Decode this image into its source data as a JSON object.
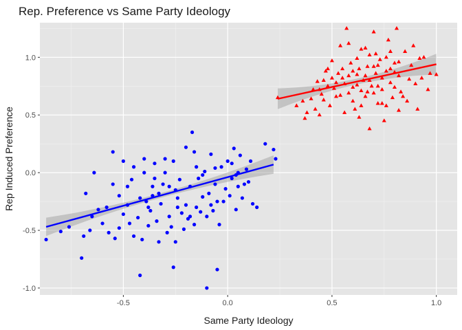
{
  "chart_data": {
    "type": "scatter",
    "title": "Rep. Preference vs Same Party Ideology",
    "xlabel": "Same Party Ideology",
    "ylabel": "Rep Induced Preference",
    "xlim": [
      -0.9,
      1.1
    ],
    "ylim": [
      -1.06,
      1.3
    ],
    "x_ticks": [
      -0.5,
      0.0,
      0.5,
      1.0
    ],
    "x_tick_labels": [
      "-0.5",
      "0.0",
      "0.5",
      "1.0"
    ],
    "y_ticks": [
      -1.0,
      -0.5,
      0.0,
      0.5,
      1.0
    ],
    "y_tick_labels": [
      "-1.0",
      "-0.5",
      "0.0",
      "0.5",
      "1.0"
    ],
    "grid": true,
    "background": "#e5e5e5",
    "series": [
      {
        "marker": "circle",
        "color": "#0000ff",
        "trend": {
          "x": [
            -0.87,
            0.22
          ],
          "y": [
            -0.47,
            0.07
          ],
          "ci_halfwidth_ends": 0.08,
          "ci_halfwidth_mid": 0.02
        },
        "points": [
          [
            -0.87,
            -0.58
          ],
          [
            -0.8,
            -0.51
          ],
          [
            -0.76,
            -0.47
          ],
          [
            -0.7,
            -0.74
          ],
          [
            -0.69,
            -0.55
          ],
          [
            -0.68,
            -0.18
          ],
          [
            -0.66,
            -0.5
          ],
          [
            -0.65,
            -0.38
          ],
          [
            -0.64,
            0.0
          ],
          [
            -0.62,
            -0.32
          ],
          [
            -0.6,
            -0.44
          ],
          [
            -0.58,
            -0.3
          ],
          [
            -0.57,
            -0.52
          ],
          [
            -0.55,
            0.18
          ],
          [
            -0.54,
            -0.57
          ],
          [
            -0.52,
            -0.48
          ],
          [
            -0.5,
            -0.36
          ],
          [
            -0.48,
            -0.28
          ],
          [
            -0.47,
            -0.44
          ],
          [
            -0.45,
            -0.55
          ],
          [
            -0.43,
            -0.39
          ],
          [
            -0.42,
            -0.89
          ],
          [
            -0.41,
            -0.58
          ],
          [
            -0.4,
            0.12
          ],
          [
            -0.39,
            -0.25
          ],
          [
            -0.38,
            -0.46
          ],
          [
            -0.37,
            -0.33
          ],
          [
            -0.36,
            -0.2
          ],
          [
            -0.35,
            0.08
          ],
          [
            -0.34,
            -0.42
          ],
          [
            -0.33,
            -0.6
          ],
          [
            -0.32,
            -0.27
          ],
          [
            -0.31,
            -0.1
          ],
          [
            -0.3,
            0.0
          ],
          [
            -0.29,
            -0.52
          ],
          [
            -0.28,
            -0.38
          ],
          [
            -0.27,
            -0.47
          ],
          [
            -0.26,
            -0.82
          ],
          [
            -0.25,
            -0.6
          ],
          [
            -0.24,
            -0.22
          ],
          [
            -0.23,
            -0.06
          ],
          [
            -0.22,
            -0.35
          ],
          [
            -0.21,
            -0.49
          ],
          [
            -0.2,
            -0.28
          ],
          [
            -0.19,
            -0.4
          ],
          [
            -0.18,
            -0.12
          ],
          [
            -0.17,
            0.35
          ],
          [
            -0.16,
            -0.45
          ],
          [
            -0.15,
            -0.3
          ],
          [
            -0.14,
            -0.05
          ],
          [
            -0.13,
            -0.34
          ],
          [
            -0.12,
            -0.21
          ],
          [
            -0.11,
            0.01
          ],
          [
            -0.1,
            -1.0
          ],
          [
            -0.09,
            -0.18
          ],
          [
            -0.08,
            0.16
          ],
          [
            -0.07,
            -0.33
          ],
          [
            -0.06,
            -0.1
          ],
          [
            -0.05,
            -0.84
          ],
          [
            -0.04,
            -0.45
          ],
          [
            -0.03,
            0.05
          ],
          [
            -0.02,
            -0.25
          ],
          [
            -0.01,
            -0.14
          ],
          [
            0.0,
            0.1
          ],
          [
            0.01,
            -0.2
          ],
          [
            0.02,
            -0.05
          ],
          [
            0.03,
            0.21
          ],
          [
            0.04,
            -0.32
          ],
          [
            0.05,
            0.0
          ],
          [
            0.06,
            0.15
          ],
          [
            0.07,
            -0.22
          ],
          [
            0.08,
            -0.1
          ],
          [
            0.09,
            0.03
          ],
          [
            0.1,
            -0.08
          ],
          [
            0.11,
            0.1
          ],
          [
            0.12,
            -0.27
          ],
          [
            0.14,
            -0.3
          ],
          [
            0.18,
            0.25
          ],
          [
            0.22,
            0.2
          ],
          [
            0.23,
            0.12
          ],
          [
            -0.45,
            0.05
          ],
          [
            -0.35,
            -0.05
          ],
          [
            -0.25,
            -0.15
          ],
          [
            -0.15,
            0.05
          ],
          [
            -0.05,
            -0.25
          ],
          [
            0.05,
            -0.12
          ],
          [
            -0.55,
            -0.1
          ],
          [
            -0.5,
            0.1
          ],
          [
            -0.4,
            0.0
          ],
          [
            -0.3,
            0.12
          ],
          [
            -0.2,
            0.22
          ],
          [
            -0.1,
            -0.38
          ],
          [
            -0.42,
            -0.22
          ],
          [
            -0.38,
            -0.3
          ],
          [
            -0.33,
            -0.18
          ],
          [
            -0.28,
            -0.12
          ],
          [
            -0.24,
            -0.3
          ],
          [
            -0.18,
            -0.38
          ],
          [
            -0.12,
            -0.02
          ],
          [
            -0.08,
            -0.28
          ],
          [
            0.02,
            0.08
          ],
          [
            -0.48,
            -0.12
          ],
          [
            -0.52,
            -0.2
          ],
          [
            -0.46,
            -0.06
          ],
          [
            -0.36,
            -0.12
          ],
          [
            -0.26,
            0.1
          ],
          [
            -0.16,
            0.18
          ],
          [
            -0.06,
            0.04
          ],
          [
            0.04,
            -0.02
          ]
        ]
      },
      {
        "marker": "triangle",
        "color": "#ff0000",
        "trend": {
          "x": [
            0.24,
            1.0
          ],
          "y": [
            0.64,
            0.94
          ],
          "ci_halfwidth_ends": 0.09,
          "ci_halfwidth_mid": 0.025
        },
        "points": [
          [
            0.24,
            0.65
          ],
          [
            0.33,
            0.58
          ],
          [
            0.36,
            0.62
          ],
          [
            0.37,
            0.47
          ],
          [
            0.38,
            0.52
          ],
          [
            0.4,
            0.64
          ],
          [
            0.41,
            0.72
          ],
          [
            0.42,
            0.55
          ],
          [
            0.43,
            0.79
          ],
          [
            0.44,
            0.5
          ],
          [
            0.45,
            0.68
          ],
          [
            0.46,
            0.63
          ],
          [
            0.47,
            0.88
          ],
          [
            0.48,
            0.75
          ],
          [
            0.49,
            0.58
          ],
          [
            0.5,
            0.97
          ],
          [
            0.51,
            0.73
          ],
          [
            0.52,
            0.66
          ],
          [
            0.53,
            0.86
          ],
          [
            0.54,
            1.1
          ],
          [
            0.55,
            0.82
          ],
          [
            0.56,
            0.77
          ],
          [
            0.57,
            1.25
          ],
          [
            0.58,
            0.69
          ],
          [
            0.59,
            0.95
          ],
          [
            0.6,
            0.74
          ],
          [
            0.61,
            0.55
          ],
          [
            0.62,
            0.85
          ],
          [
            0.63,
            0.48
          ],
          [
            0.64,
            1.07
          ],
          [
            0.65,
            0.8
          ],
          [
            0.66,
            0.66
          ],
          [
            0.67,
            0.92
          ],
          [
            0.68,
            0.38
          ],
          [
            0.69,
            0.75
          ],
          [
            0.7,
            1.22
          ],
          [
            0.71,
            0.86
          ],
          [
            0.72,
            0.6
          ],
          [
            0.73,
            0.98
          ],
          [
            0.74,
            0.72
          ],
          [
            0.75,
            0.45
          ],
          [
            0.76,
            0.88
          ],
          [
            0.77,
            1.15
          ],
          [
            0.78,
            0.78
          ],
          [
            0.79,
            0.65
          ],
          [
            0.8,
            0.95
          ],
          [
            0.81,
            1.25
          ],
          [
            0.82,
            0.84
          ],
          [
            0.83,
            0.7
          ],
          [
            0.85,
            1.05
          ],
          [
            0.86,
            0.62
          ],
          [
            0.88,
            0.93
          ],
          [
            0.9,
            0.77
          ],
          [
            0.91,
            0.55
          ],
          [
            0.92,
            0.99
          ],
          [
            0.93,
            0.82
          ],
          [
            0.94,
            1.0
          ],
          [
            0.96,
            0.72
          ],
          [
            0.97,
            0.86
          ],
          [
            1.0,
            0.85
          ],
          [
            0.52,
            0.78
          ],
          [
            0.55,
            0.9
          ],
          [
            0.58,
            0.84
          ],
          [
            0.6,
            0.62
          ],
          [
            0.62,
            0.99
          ],
          [
            0.64,
            0.71
          ],
          [
            0.66,
            0.84
          ],
          [
            0.68,
            1.02
          ],
          [
            0.7,
            0.69
          ],
          [
            0.72,
            0.93
          ],
          [
            0.74,
            0.82
          ],
          [
            0.76,
            0.58
          ],
          [
            0.78,
            1.05
          ],
          [
            0.8,
            0.74
          ],
          [
            0.82,
            0.96
          ],
          [
            0.84,
            0.66
          ],
          [
            0.87,
            0.81
          ],
          [
            0.89,
            1.1
          ],
          [
            0.56,
            0.52
          ],
          [
            0.6,
            0.88
          ],
          [
            0.64,
            0.58
          ],
          [
            0.68,
            0.8
          ],
          [
            0.72,
            0.75
          ],
          [
            0.76,
            1.0
          ],
          [
            0.8,
            0.87
          ],
          [
            0.5,
            0.82
          ],
          [
            0.54,
            0.67
          ],
          [
            0.58,
            1.12
          ],
          [
            0.62,
            0.76
          ],
          [
            0.66,
            1.08
          ],
          [
            0.7,
            0.92
          ],
          [
            0.74,
            0.6
          ],
          [
            0.78,
            0.9
          ],
          [
            0.82,
            0.54
          ],
          [
            0.48,
            0.9
          ],
          [
            0.46,
            0.8
          ],
          [
            0.44,
            0.72
          ],
          [
            0.63,
            0.9
          ],
          [
            0.67,
            0.7
          ],
          [
            0.71,
            1.03
          ]
        ]
      }
    ]
  }
}
